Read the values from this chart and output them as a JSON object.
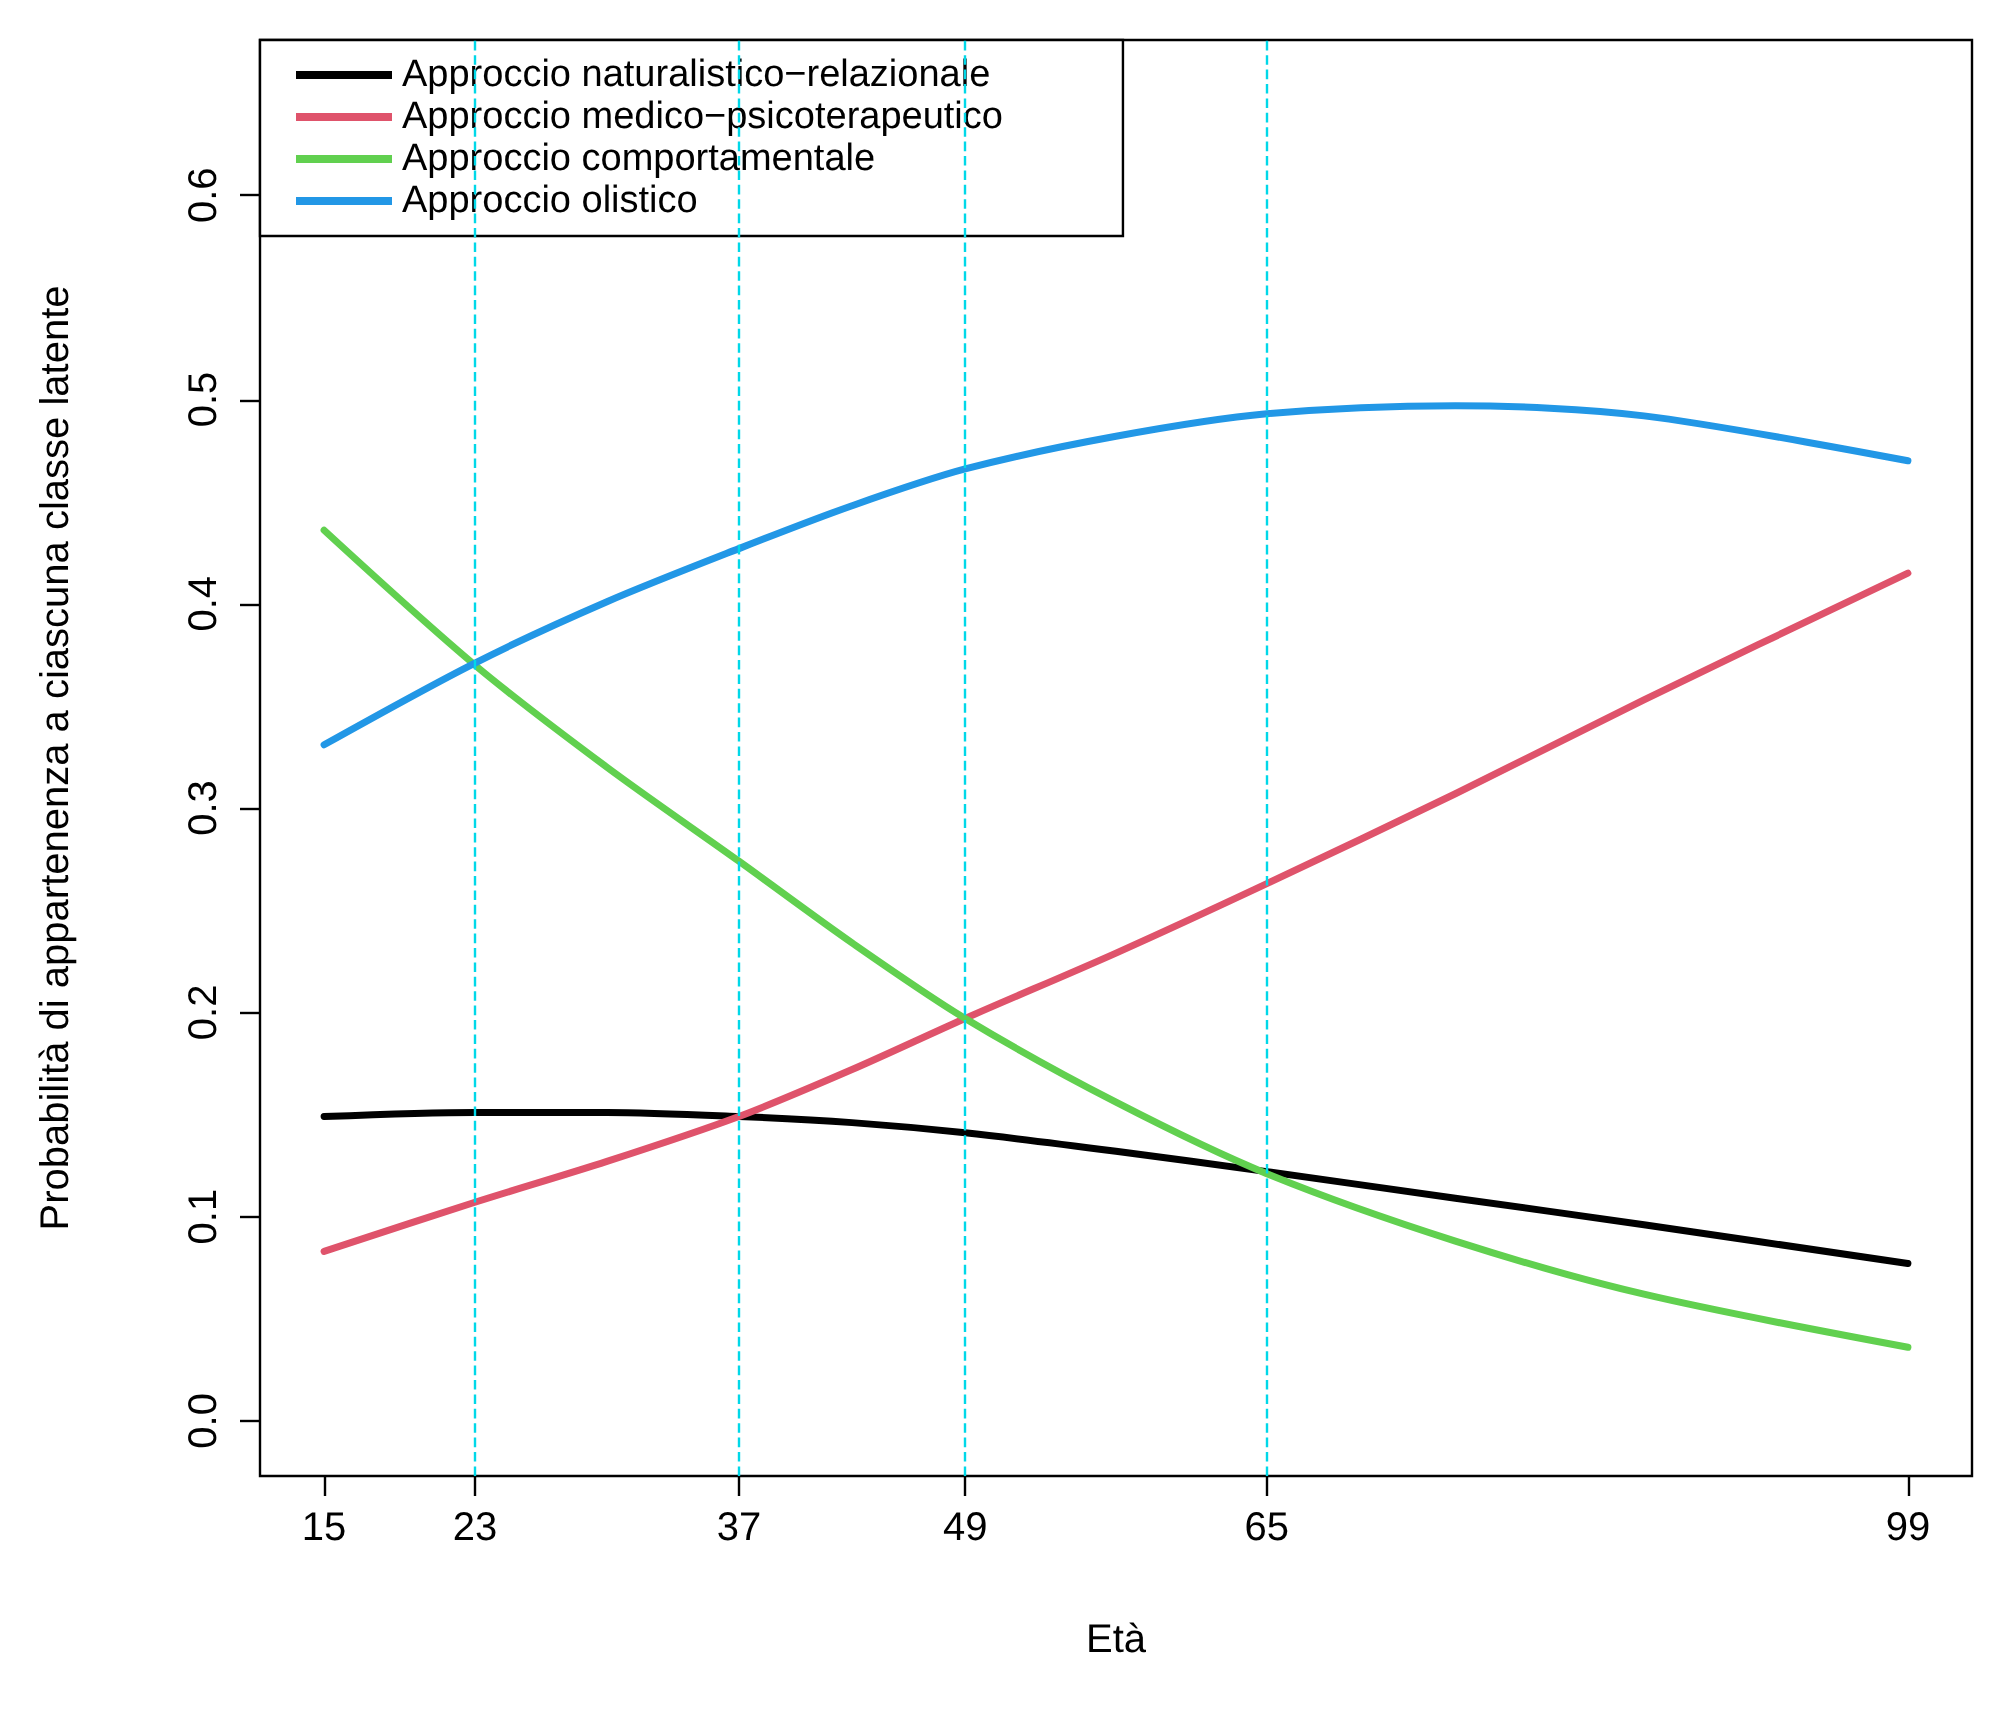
{
  "chart_data": {
    "type": "line",
    "xlabel": "Età",
    "ylabel": "Probabilità di appartenenza a ciascuna classe latente",
    "x": [
      15,
      23,
      30,
      37,
      43,
      49,
      57,
      65,
      75,
      85,
      99
    ],
    "series": [
      {
        "name": "Approccio naturalistico−relazionale",
        "color": "#000000",
        "values": [
          0.149,
          0.151,
          0.151,
          0.149,
          0.146,
          0.141,
          0.132,
          0.122,
          0.109,
          0.096,
          0.077
        ]
      },
      {
        "name": "Approccio medico−psicoterapeutico",
        "color": "#df536b",
        "values": [
          0.083,
          0.107,
          0.127,
          0.149,
          0.172,
          0.197,
          0.229,
          0.263,
          0.307,
          0.353,
          0.415
        ]
      },
      {
        "name": "Approccio comportamentale",
        "color": "#61d04f",
        "values": [
          0.436,
          0.37,
          0.32,
          0.274,
          0.234,
          0.197,
          0.156,
          0.121,
          0.088,
          0.062,
          0.036
        ]
      },
      {
        "name": "Approccio olistico",
        "color": "#2297e6",
        "values": [
          0.331,
          0.371,
          0.401,
          0.427,
          0.448,
          0.466,
          0.482,
          0.493,
          0.497,
          0.492,
          0.47
        ]
      }
    ],
    "xlim": [
      11.6,
      102.4
    ],
    "xticks": [
      15,
      23,
      37,
      49,
      65,
      99
    ],
    "ylim": [
      -0.027,
      0.676
    ],
    "yticks": [
      {
        "value": 0,
        "label": "0.0"
      },
      {
        "value": 0.1,
        "label": "0.1"
      },
      {
        "value": 0.2,
        "label": "0.2"
      },
      {
        "value": 0.3,
        "label": "0.3"
      },
      {
        "value": 0.4,
        "label": "0.4"
      },
      {
        "value": 0.5,
        "label": "0.5"
      },
      {
        "value": 0.6,
        "label": "0.6"
      }
    ],
    "ref_lines": [
      {
        "axis": "x",
        "value": 23,
        "color": "#00d8e8",
        "line_style": "dashed"
      },
      {
        "axis": "x",
        "value": 37,
        "color": "#00d8e8",
        "line_style": "dashed"
      },
      {
        "axis": "x",
        "value": 49,
        "color": "#00d8e8",
        "line_style": "dashed"
      },
      {
        "axis": "x",
        "value": 65,
        "color": "#00d8e8",
        "line_style": "dashed"
      }
    ],
    "grid": false,
    "legend": "top left",
    "marker": "none",
    "line_style": "solid"
  }
}
